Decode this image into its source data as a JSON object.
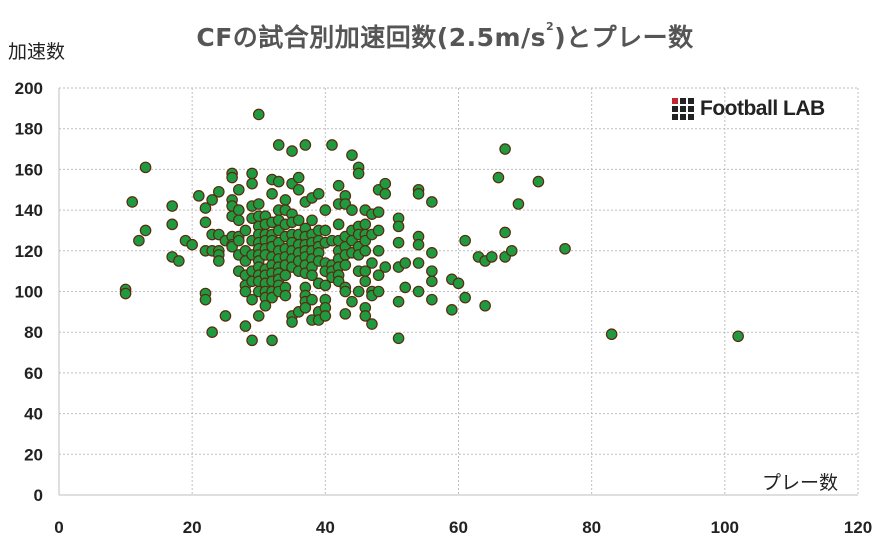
{
  "title_main": "CFの試合別加速回数(2.5m/s",
  "title_sup": "2",
  "title_end": ")とプレー数",
  "logo_text": "Football LAB",
  "colors": {
    "point_fill": "#1f9a40",
    "point_stroke": "#5a2a10",
    "grid": "#bfbfbf",
    "axis_text": "#222222"
  },
  "chart_data": {
    "type": "scatter",
    "title": "CFの試合別加速回数(2.5m/s²)とプレー数",
    "xlabel": "プレー数",
    "ylabel": "加速数",
    "xlim": [
      0,
      120
    ],
    "ylim": [
      0,
      200
    ],
    "xticks": [
      0,
      20,
      40,
      60,
      80,
      100,
      120
    ],
    "yticks": [
      0,
      20,
      40,
      60,
      80,
      100,
      120,
      140,
      160,
      180,
      200
    ],
    "grid": true,
    "points": [
      [
        10,
        101
      ],
      [
        10,
        99
      ],
      [
        11,
        144
      ],
      [
        12,
        125
      ],
      [
        13,
        161
      ],
      [
        13,
        130
      ],
      [
        17,
        142
      ],
      [
        17,
        133
      ],
      [
        17,
        117
      ],
      [
        18,
        115
      ],
      [
        19,
        125
      ],
      [
        20,
        123
      ],
      [
        21,
        147
      ],
      [
        22,
        134
      ],
      [
        22,
        141
      ],
      [
        22,
        120
      ],
      [
        22,
        99
      ],
      [
        22,
        96
      ],
      [
        23,
        145
      ],
      [
        23,
        128
      ],
      [
        23,
        120
      ],
      [
        23,
        80
      ],
      [
        24,
        149
      ],
      [
        24,
        128
      ],
      [
        24,
        120
      ],
      [
        24,
        118
      ],
      [
        24,
        115
      ],
      [
        25,
        125
      ],
      [
        25,
        88
      ],
      [
        26,
        158
      ],
      [
        26,
        156
      ],
      [
        26,
        145
      ],
      [
        26,
        142
      ],
      [
        26,
        137
      ],
      [
        26,
        127
      ],
      [
        26,
        123
      ],
      [
        26,
        122
      ],
      [
        27,
        150
      ],
      [
        27,
        140
      ],
      [
        27,
        135
      ],
      [
        27,
        127
      ],
      [
        27,
        125
      ],
      [
        27,
        118
      ],
      [
        27,
        110
      ],
      [
        28,
        130
      ],
      [
        28,
        120
      ],
      [
        28,
        115
      ],
      [
        28,
        108
      ],
      [
        28,
        103
      ],
      [
        28,
        100
      ],
      [
        28,
        83
      ],
      [
        29,
        158
      ],
      [
        29,
        153
      ],
      [
        29,
        142
      ],
      [
        29,
        136
      ],
      [
        29,
        125
      ],
      [
        29,
        118
      ],
      [
        29,
        110
      ],
      [
        29,
        105
      ],
      [
        29,
        96
      ],
      [
        29,
        76
      ],
      [
        30,
        187
      ],
      [
        30,
        143
      ],
      [
        30,
        137
      ],
      [
        30,
        132
      ],
      [
        30,
        128
      ],
      [
        30,
        124
      ],
      [
        30,
        121
      ],
      [
        30,
        118
      ],
      [
        30,
        115
      ],
      [
        30,
        112
      ],
      [
        30,
        108
      ],
      [
        30,
        105
      ],
      [
        30,
        100
      ],
      [
        30,
        88
      ],
      [
        31,
        137
      ],
      [
        31,
        133
      ],
      [
        31,
        128
      ],
      [
        31,
        125
      ],
      [
        31,
        121
      ],
      [
        31,
        118
      ],
      [
        31,
        111
      ],
      [
        31,
        108
      ],
      [
        31,
        104
      ],
      [
        31,
        100
      ],
      [
        31,
        97
      ],
      [
        31,
        93
      ],
      [
        32,
        155
      ],
      [
        32,
        148
      ],
      [
        32,
        134
      ],
      [
        32,
        128
      ],
      [
        32,
        125
      ],
      [
        32,
        122
      ],
      [
        32,
        117
      ],
      [
        32,
        113
      ],
      [
        32,
        109
      ],
      [
        32,
        105
      ],
      [
        32,
        100
      ],
      [
        32,
        97
      ],
      [
        32,
        76
      ],
      [
        33,
        172
      ],
      [
        33,
        154
      ],
      [
        33,
        140
      ],
      [
        33,
        135
      ],
      [
        33,
        130
      ],
      [
        33,
        124
      ],
      [
        33,
        120
      ],
      [
        33,
        116
      ],
      [
        33,
        112
      ],
      [
        33,
        109
      ],
      [
        33,
        106
      ],
      [
        33,
        103
      ],
      [
        33,
        100
      ],
      [
        34,
        145
      ],
      [
        34,
        140
      ],
      [
        34,
        133
      ],
      [
        34,
        127
      ],
      [
        34,
        121
      ],
      [
        34,
        117
      ],
      [
        34,
        113
      ],
      [
        34,
        108
      ],
      [
        34,
        102
      ],
      [
        34,
        98
      ],
      [
        35,
        169
      ],
      [
        35,
        153
      ],
      [
        35,
        138
      ],
      [
        35,
        134
      ],
      [
        35,
        128
      ],
      [
        35,
        124
      ],
      [
        35,
        120
      ],
      [
        35,
        116
      ],
      [
        35,
        112
      ],
      [
        35,
        88
      ],
      [
        35,
        85
      ],
      [
        36,
        156
      ],
      [
        36,
        150
      ],
      [
        36,
        135
      ],
      [
        36,
        128
      ],
      [
        36,
        123
      ],
      [
        36,
        119
      ],
      [
        36,
        115
      ],
      [
        36,
        110
      ],
      [
        36,
        90
      ],
      [
        37,
        172
      ],
      [
        37,
        144
      ],
      [
        37,
        131
      ],
      [
        37,
        127
      ],
      [
        37,
        123
      ],
      [
        37,
        120
      ],
      [
        37,
        117
      ],
      [
        37,
        113
      ],
      [
        37,
        109
      ],
      [
        37,
        102
      ],
      [
        37,
        98
      ],
      [
        37,
        95
      ],
      [
        37,
        92
      ],
      [
        38,
        146
      ],
      [
        38,
        135
      ],
      [
        38,
        128
      ],
      [
        38,
        124
      ],
      [
        38,
        120
      ],
      [
        38,
        116
      ],
      [
        38,
        112
      ],
      [
        38,
        108
      ],
      [
        38,
        96
      ],
      [
        38,
        86
      ],
      [
        39,
        148
      ],
      [
        39,
        130
      ],
      [
        39,
        125
      ],
      [
        39,
        122
      ],
      [
        39,
        119
      ],
      [
        39,
        115
      ],
      [
        39,
        104
      ],
      [
        39,
        90
      ],
      [
        39,
        86
      ],
      [
        40,
        140
      ],
      [
        40,
        130
      ],
      [
        40,
        124
      ],
      [
        40,
        114
      ],
      [
        40,
        110
      ],
      [
        40,
        103
      ],
      [
        40,
        96
      ],
      [
        40,
        92
      ],
      [
        40,
        88
      ],
      [
        41,
        172
      ],
      [
        41,
        125
      ],
      [
        41,
        113
      ],
      [
        41,
        110
      ],
      [
        41,
        107
      ],
      [
        42,
        152
      ],
      [
        42,
        143
      ],
      [
        42,
        133
      ],
      [
        42,
        125
      ],
      [
        42,
        120
      ],
      [
        42,
        116
      ],
      [
        42,
        112
      ],
      [
        42,
        108
      ],
      [
        42,
        105
      ],
      [
        43,
        147
      ],
      [
        43,
        143
      ],
      [
        43,
        127
      ],
      [
        43,
        122
      ],
      [
        43,
        118
      ],
      [
        43,
        113
      ],
      [
        43,
        102
      ],
      [
        43,
        100
      ],
      [
        43,
        89
      ],
      [
        44,
        167
      ],
      [
        44,
        140
      ],
      [
        44,
        130
      ],
      [
        44,
        125
      ],
      [
        44,
        119
      ],
      [
        44,
        95
      ],
      [
        45,
        161
      ],
      [
        45,
        158
      ],
      [
        45,
        132
      ],
      [
        45,
        128
      ],
      [
        45,
        122
      ],
      [
        45,
        118
      ],
      [
        45,
        110
      ],
      [
        45,
        100
      ],
      [
        46,
        140
      ],
      [
        46,
        133
      ],
      [
        46,
        128
      ],
      [
        46,
        125
      ],
      [
        46,
        120
      ],
      [
        46,
        110
      ],
      [
        46,
        105
      ],
      [
        46,
        92
      ],
      [
        46,
        88
      ],
      [
        47,
        138
      ],
      [
        47,
        128
      ],
      [
        47,
        114
      ],
      [
        47,
        100
      ],
      [
        47,
        98
      ],
      [
        47,
        84
      ],
      [
        48,
        150
      ],
      [
        48,
        139
      ],
      [
        48,
        130
      ],
      [
        48,
        120
      ],
      [
        48,
        108
      ],
      [
        48,
        100
      ],
      [
        49,
        153
      ],
      [
        49,
        148
      ],
      [
        49,
        112
      ],
      [
        51,
        136
      ],
      [
        51,
        132
      ],
      [
        51,
        124
      ],
      [
        51,
        112
      ],
      [
        51,
        95
      ],
      [
        51,
        77
      ],
      [
        52,
        114
      ],
      [
        52,
        102
      ],
      [
        54,
        150
      ],
      [
        54,
        148
      ],
      [
        54,
        127
      ],
      [
        54,
        123
      ],
      [
        54,
        114
      ],
      [
        54,
        100
      ],
      [
        56,
        144
      ],
      [
        56,
        119
      ],
      [
        56,
        110
      ],
      [
        56,
        105
      ],
      [
        56,
        96
      ],
      [
        59,
        106
      ],
      [
        59,
        91
      ],
      [
        60,
        104
      ],
      [
        61,
        125
      ],
      [
        61,
        97
      ],
      [
        63,
        117
      ],
      [
        64,
        115
      ],
      [
        64,
        93
      ],
      [
        65,
        117
      ],
      [
        66,
        156
      ],
      [
        67,
        170
      ],
      [
        67,
        129
      ],
      [
        67,
        117
      ],
      [
        68,
        120
      ],
      [
        69,
        143
      ],
      [
        72,
        154
      ],
      [
        76,
        121
      ],
      [
        83,
        79
      ],
      [
        102,
        78
      ]
    ]
  }
}
